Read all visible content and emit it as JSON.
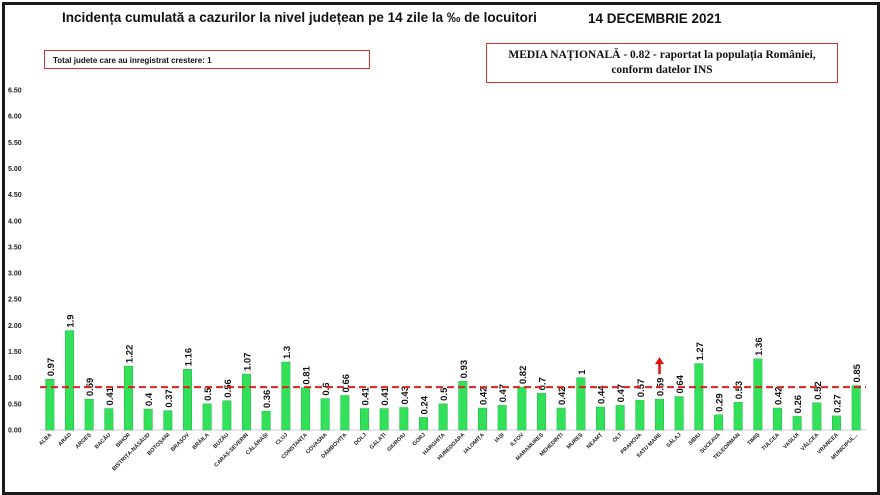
{
  "header": {
    "title": "Incidența cumulată a cazurilor la nivel județean pe 14 zile la ‰ de locuitori",
    "date": "14 DECEMBRIE 2021"
  },
  "info_box": "Total judete care au inregistrat crestere: 1",
  "national_box": {
    "line1": "MEDIA NAȚIONALĂ  - 0.82 -  raportat la populația  României,",
    "line2": "conform datelor INS"
  },
  "colors": {
    "bar": "#33e05a",
    "bar_edge": "#22b845",
    "reference_line": "#e02020",
    "arrow": "#e01010"
  },
  "chart_data": {
    "type": "bar",
    "title": "Incidența cumulată a cazurilor la nivel județean pe 14 zile la ‰ de locuitori",
    "xlabel": "",
    "ylabel": "",
    "ylim": [
      0,
      6.5
    ],
    "yticks": [
      "0.00",
      "0.50",
      "1.00",
      "1.50",
      "2.00",
      "2.50",
      "3.00",
      "3.50",
      "4.00",
      "4.50",
      "5.00",
      "5.50",
      "6.00",
      "6.50"
    ],
    "grid": false,
    "reference_line": 0.82,
    "increase_marker_category": "SATU MARE",
    "categories": [
      "ALBA",
      "ARAD",
      "ARGEȘ",
      "BACĂU",
      "BIHOR",
      "BISTRIȚA-NĂSĂUD",
      "BOTOȘANI",
      "BRAȘOV",
      "BRĂILA",
      "BUZĂU",
      "CARAȘ-SEVERIN",
      "CĂLĂRAȘI",
      "CLUJ",
      "CONSTANȚA",
      "COVASNA",
      "DÂMBOVIȚA",
      "DOLJ",
      "GALAȚI",
      "GIURGIU",
      "GORJ",
      "HARGHITA",
      "HUNEDOARA",
      "IALOMIȚA",
      "IAȘI",
      "ILFOV",
      "MARAMUREȘ",
      "MEHEDINȚI",
      "MUREȘ",
      "NEAMȚ",
      "OLT",
      "PRAHOVA",
      "SATU MARE",
      "SĂLAJ",
      "SIBIU",
      "SUCEAVA",
      "TELEORMAN",
      "TIMIȘ",
      "TULCEA",
      "VASLUI",
      "VÂLCEA",
      "VRANCEA",
      "MUNICIPUL..."
    ],
    "values": [
      0.97,
      1.9,
      0.59,
      0.41,
      1.22,
      0.4,
      0.37,
      1.16,
      0.5,
      0.56,
      1.07,
      0.36,
      1.3,
      0.81,
      0.6,
      0.66,
      0.41,
      0.41,
      0.43,
      0.24,
      0.5,
      0.93,
      0.42,
      0.47,
      0.82,
      0.7,
      0.42,
      1,
      0.44,
      0.47,
      0.57,
      0.59,
      0.64,
      1.27,
      0.29,
      0.53,
      1.36,
      0.42,
      0.26,
      0.52,
      0.27,
      0.85
    ],
    "labels": [
      "0.97",
      "1.9",
      "0.59",
      "0.41",
      "1.22",
      "0.4",
      "0.37",
      "1.16",
      "0.5",
      "0.56",
      "1.07",
      "0.36",
      "1.3",
      "0.81",
      "0.6",
      "0.66",
      "0.41",
      "0.41",
      "0.43",
      "0.24",
      "0.5",
      "0.93",
      "0.42",
      "0.47",
      "0.82",
      "0.7",
      "0.42",
      "1",
      "0.44",
      "0.47",
      "0.57",
      "0.59",
      "0.64",
      "1.27",
      "0.29",
      "0.53",
      "1.36",
      "0.42",
      "0.26",
      "0.52",
      "0.27",
      "0.85"
    ]
  }
}
